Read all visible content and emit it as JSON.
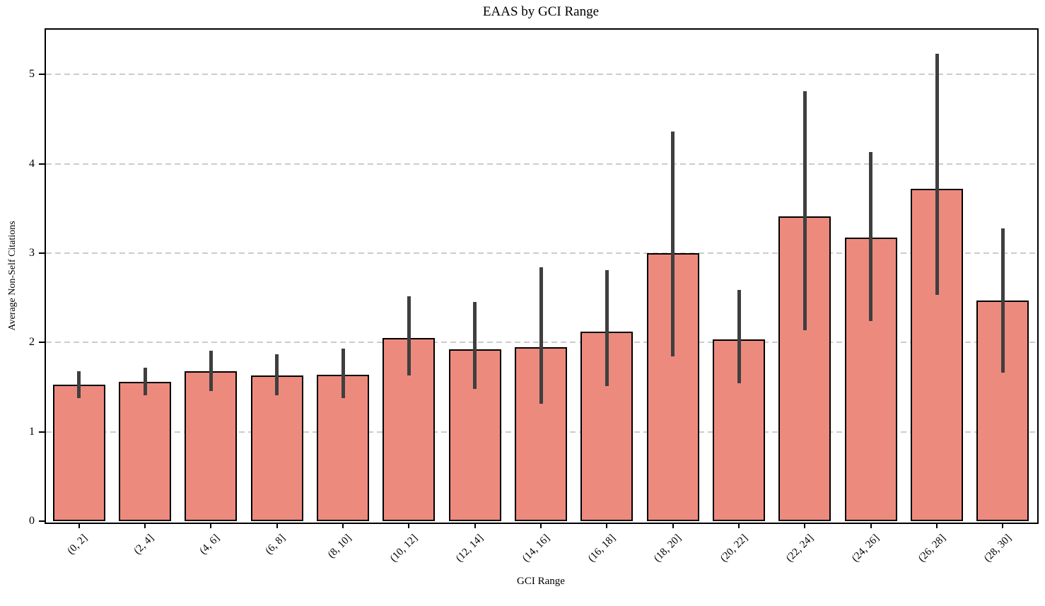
{
  "chart_data": {
    "type": "bar",
    "title": "EAAS by GCI Range",
    "xlabel": "GCI Range",
    "ylabel": "Average Non-Self Citations",
    "categories": [
      "(0, 2]",
      "(2, 4]",
      "(4, 6]",
      "(6, 8]",
      "(8, 10]",
      "(10, 12]",
      "(12, 14]",
      "(14, 16]",
      "(16, 18]",
      "(18, 20]",
      "(20, 22]",
      "(22, 24]",
      "(24, 26]",
      "(26, 28]",
      "(28, 30]"
    ],
    "values": [
      1.53,
      1.56,
      1.68,
      1.63,
      1.64,
      2.05,
      1.92,
      1.95,
      2.12,
      3.0,
      2.03,
      3.41,
      3.17,
      3.72,
      2.47
    ],
    "error_low": [
      1.38,
      1.41,
      1.46,
      1.41,
      1.38,
      1.63,
      1.48,
      1.31,
      1.51,
      1.84,
      1.54,
      2.14,
      2.24,
      2.53,
      1.66
    ],
    "error_high": [
      1.68,
      1.72,
      1.91,
      1.87,
      1.93,
      2.52,
      2.45,
      2.84,
      2.81,
      4.36,
      2.59,
      4.81,
      4.13,
      5.23,
      3.28
    ],
    "ylim": [
      0,
      5.5
    ],
    "yticks": [
      0,
      1,
      2,
      3,
      4,
      5
    ],
    "grid": "horizontal-dashed",
    "legend": "none",
    "bar_color": "#ED8A7E",
    "bar_edge_color": "#000000",
    "error_bar_color": "#3F3F3F",
    "grid_color": "#CCCCCC",
    "background_color": "#FFFFFF"
  }
}
